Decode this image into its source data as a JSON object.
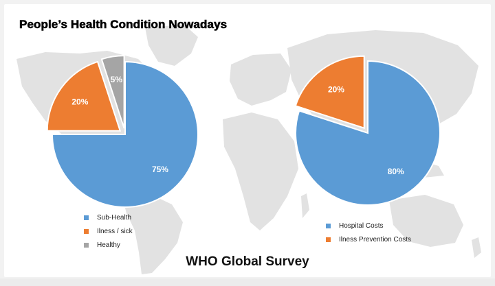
{
  "title": "People’s Health Condition Nowadays",
  "footer": "WHO Global Survey",
  "colors": {
    "blue": "#5b9bd5",
    "orange": "#ed7d31",
    "gray": "#a5a5a5",
    "map": "#e2e2e2"
  },
  "chart_data": [
    {
      "type": "pie",
      "exploded": true,
      "start_angle_deg": 0,
      "direction": "clockwise",
      "labels": [
        "Sub-Health",
        "Ilness / sick",
        "Healthy"
      ],
      "values": [
        75,
        20,
        5
      ],
      "value_labels": [
        "75%",
        "20%",
        "5%"
      ],
      "colors": [
        "#5b9bd5",
        "#ed7d31",
        "#a5a5a5"
      ],
      "legend": "bottom"
    },
    {
      "type": "pie",
      "exploded": true,
      "start_angle_deg": 0,
      "direction": "clockwise",
      "labels": [
        "Hospital Costs",
        "Ilness Prevention Costs"
      ],
      "values": [
        80,
        20
      ],
      "value_labels": [
        "80%",
        "20%"
      ],
      "colors": [
        "#5b9bd5",
        "#ed7d31"
      ],
      "legend": "bottom"
    }
  ]
}
